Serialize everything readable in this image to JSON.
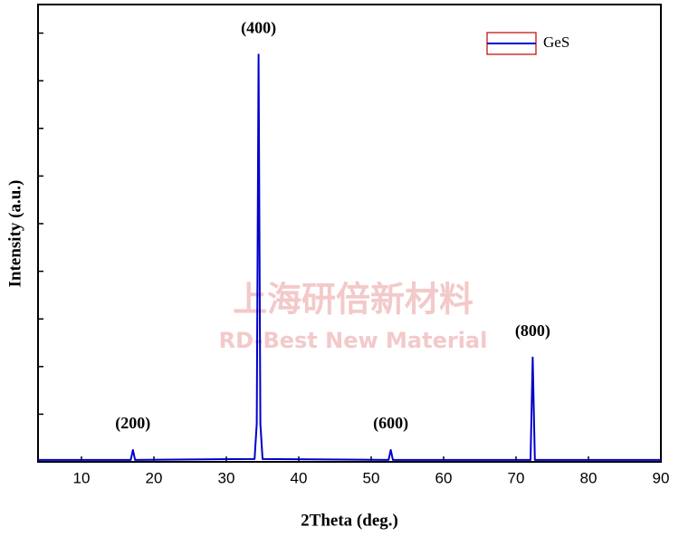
{
  "chart_data": {
    "type": "line",
    "xlabel": "2Theta (deg.)",
    "ylabel": "Intensity (a.u.)",
    "x": [
      4,
      16.8,
      17.1,
      17.4,
      33.9,
      34.2,
      34.45,
      34.7,
      35.0,
      52.4,
      52.7,
      53.0,
      72.0,
      72.3,
      72.6,
      90
    ],
    "series": [
      {
        "name": "GeS",
        "color": "#0000cc",
        "values": [
          0.4,
          0.4,
          2.5,
          0.4,
          0.6,
          8,
          85.5,
          8,
          0.6,
          0.4,
          2.5,
          0.4,
          0.4,
          21.9,
          0.4,
          0.4
        ]
      }
    ],
    "annotations": [
      {
        "label": "(200)",
        "x": 17.1
      },
      {
        "label": "(400)",
        "x": 34.45
      },
      {
        "label": "(600)",
        "x": 52.7
      },
      {
        "label": "(800)",
        "x": 72.3
      }
    ],
    "xlim": [
      4,
      90
    ],
    "xticks": [
      10,
      20,
      30,
      40,
      50,
      60,
      70,
      80,
      90
    ],
    "ylim": [
      0,
      96
    ],
    "yticks": [
      10,
      20,
      30,
      40,
      50,
      60,
      70,
      80,
      90
    ],
    "legend": "upper right",
    "watermark": [
      "上海研倍新材料",
      "RD-Best New Material"
    ]
  }
}
